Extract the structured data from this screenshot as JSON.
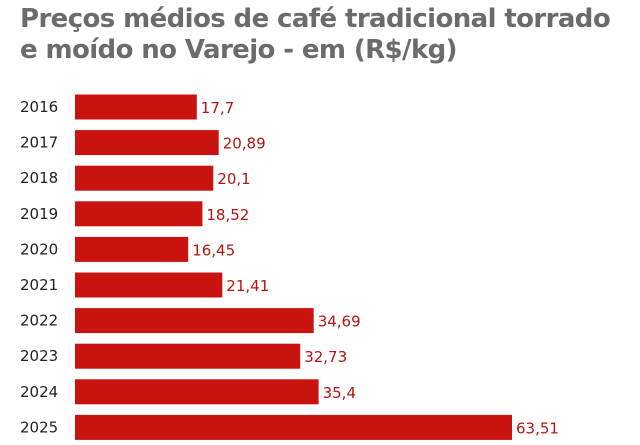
{
  "colors": {
    "bar": "#c8130f",
    "value_text": "#b31510",
    "category_text": "#222222",
    "title_text": "#6b6b6b",
    "background": "#ffffff"
  },
  "chart_data": {
    "type": "bar",
    "orientation": "horizontal",
    "title_lines": [
      "Preços médios de café tradicional torrado",
      "e moído no Varejo - em (R$/kg)"
    ],
    "categories": [
      "2016",
      "2017",
      "2018",
      "2019",
      "2020",
      "2021",
      "2022",
      "2023",
      "2024",
      "2025"
    ],
    "values": [
      17.7,
      20.89,
      20.1,
      18.52,
      16.45,
      21.41,
      34.69,
      32.73,
      35.4,
      63.51
    ],
    "value_labels": [
      "17,7",
      "20,89",
      "20,1",
      "18,52",
      "16,45",
      "21,41",
      "34,69",
      "32,73",
      "35,4",
      "63,51"
    ],
    "xlim": [
      0,
      63.51
    ],
    "grid": false,
    "legend": "none"
  }
}
